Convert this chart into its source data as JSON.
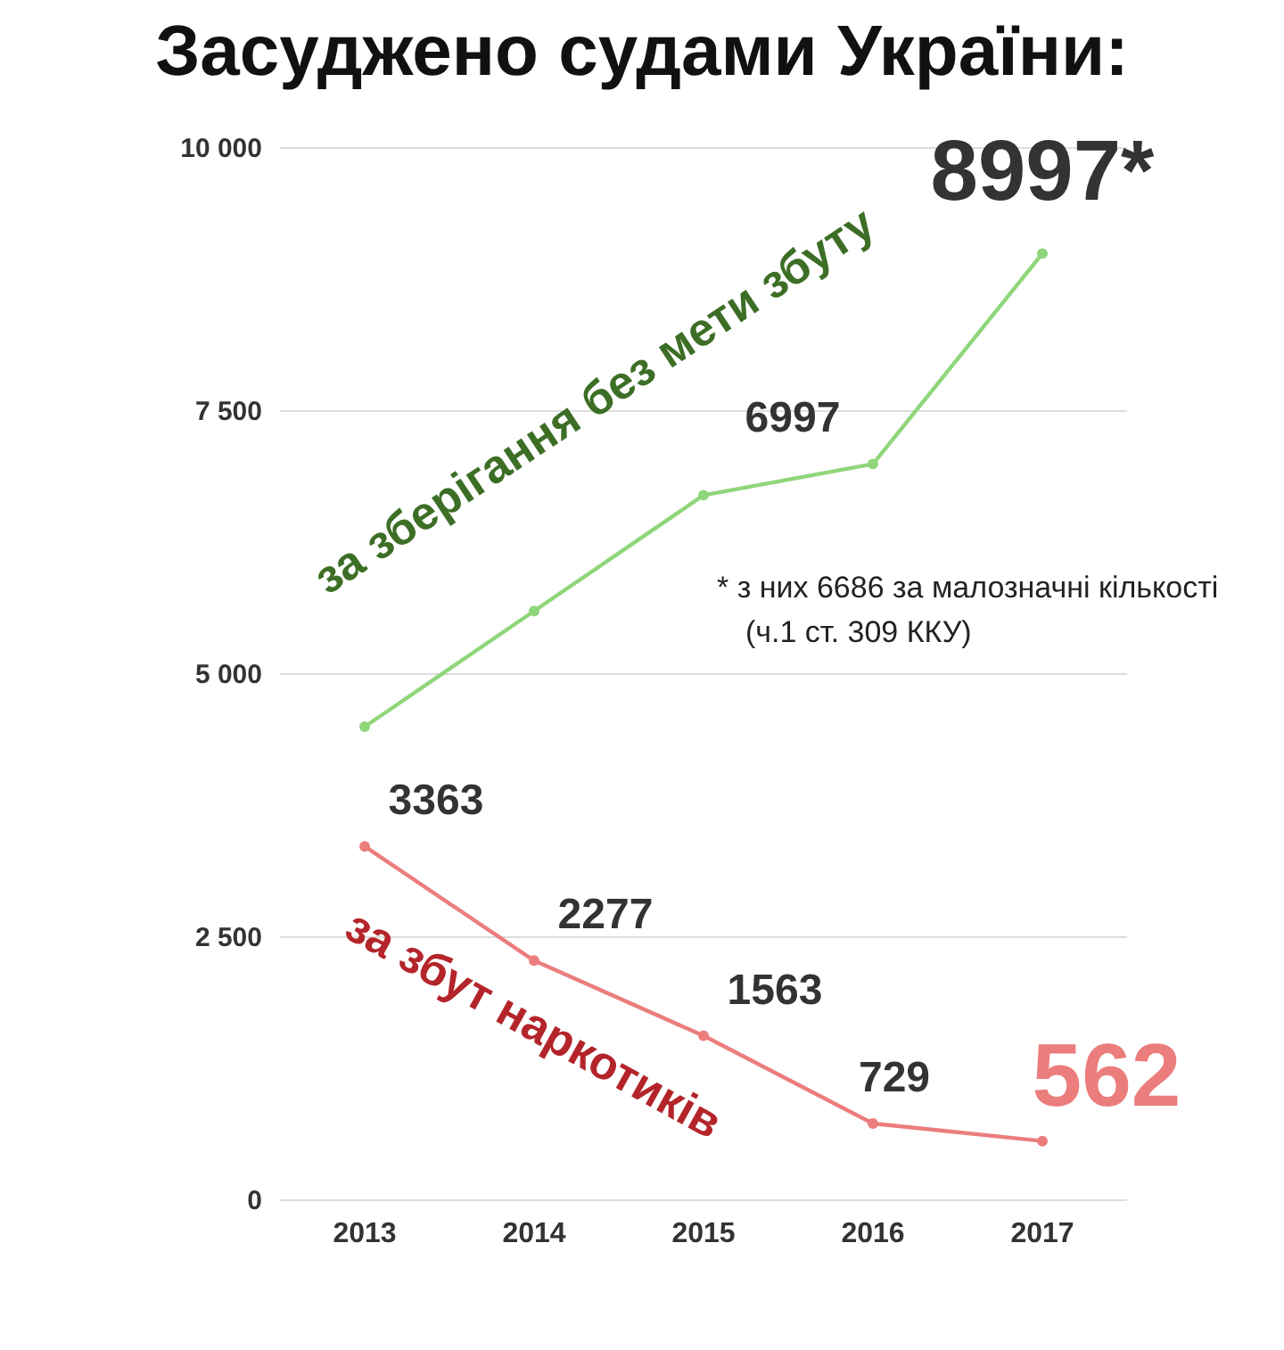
{
  "chart_data": {
    "type": "line",
    "title": "Засуджено судами України:",
    "categories": [
      "2013",
      "2014",
      "2015",
      "2016",
      "2017"
    ],
    "series": [
      {
        "name": "за зберігання без мети збуту",
        "color": "#8fd67a",
        "values": [
          4500,
          5600,
          6700,
          6997,
          8997
        ],
        "value_labels": [
          null,
          null,
          null,
          "6997",
          "8997*"
        ]
      },
      {
        "name": "за збут наркотиків",
        "color": "#ec7d7d",
        "values": [
          3363,
          2277,
          1563,
          729,
          562
        ],
        "value_labels": [
          "3363",
          "2277",
          "1563",
          "729",
          "562"
        ]
      }
    ],
    "ylim": [
      0,
      10000
    ],
    "yticks": [
      {
        "value": 0,
        "label": "0"
      },
      {
        "value": 2500,
        "label": "2 500"
      },
      {
        "value": 5000,
        "label": "5 000"
      },
      {
        "value": 7500,
        "label": "7 500"
      },
      {
        "value": 10000,
        "label": "10 000"
      }
    ],
    "grid": "y",
    "marker": "circle",
    "line_style": "solid",
    "annotations": [
      "* з них 6686 за малозначні кількості (ч.1 ст. 309 ККУ)"
    ]
  }
}
